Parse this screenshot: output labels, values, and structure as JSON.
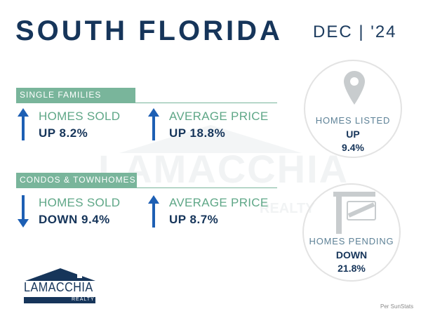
{
  "header": {
    "title": "SOUTH FLORIDA",
    "date": "DEC | '24"
  },
  "single_families": {
    "label": "SINGLE FAMILIES",
    "homes_sold": {
      "label": "HOMES SOLD",
      "value": "UP 8.2%",
      "direction": "up"
    },
    "average_price": {
      "label": "AVERAGE PRICE",
      "value": "UP 18.8%",
      "direction": "up"
    }
  },
  "condos": {
    "label": "CONDOS & TOWNHOMES",
    "homes_sold": {
      "label": "HOMES SOLD",
      "value": "DOWN 9.4%",
      "direction": "down"
    },
    "average_price": {
      "label": "AVERAGE PRICE",
      "value": "UP 8.7%",
      "direction": "up"
    }
  },
  "homes_listed": {
    "label": "HOMES LISTED",
    "line1": "UP",
    "line2": "9.4%",
    "icon": "map-pin-icon"
  },
  "homes_pending": {
    "label": "HOMES PENDING",
    "line1": "DOWN",
    "line2": "21.8%",
    "icon": "sign-post-icon"
  },
  "logo": {
    "name": "LAMACCHIA",
    "sub": "REALTY"
  },
  "watermark": {
    "name": "LAMACCHIA",
    "sub": "REALTY"
  },
  "footnote": "Per SunStats",
  "colors": {
    "navy": "#16355a",
    "green": "#79b59b",
    "arrow": "#1d5fb4",
    "circle_border": "#e3e3e3"
  }
}
